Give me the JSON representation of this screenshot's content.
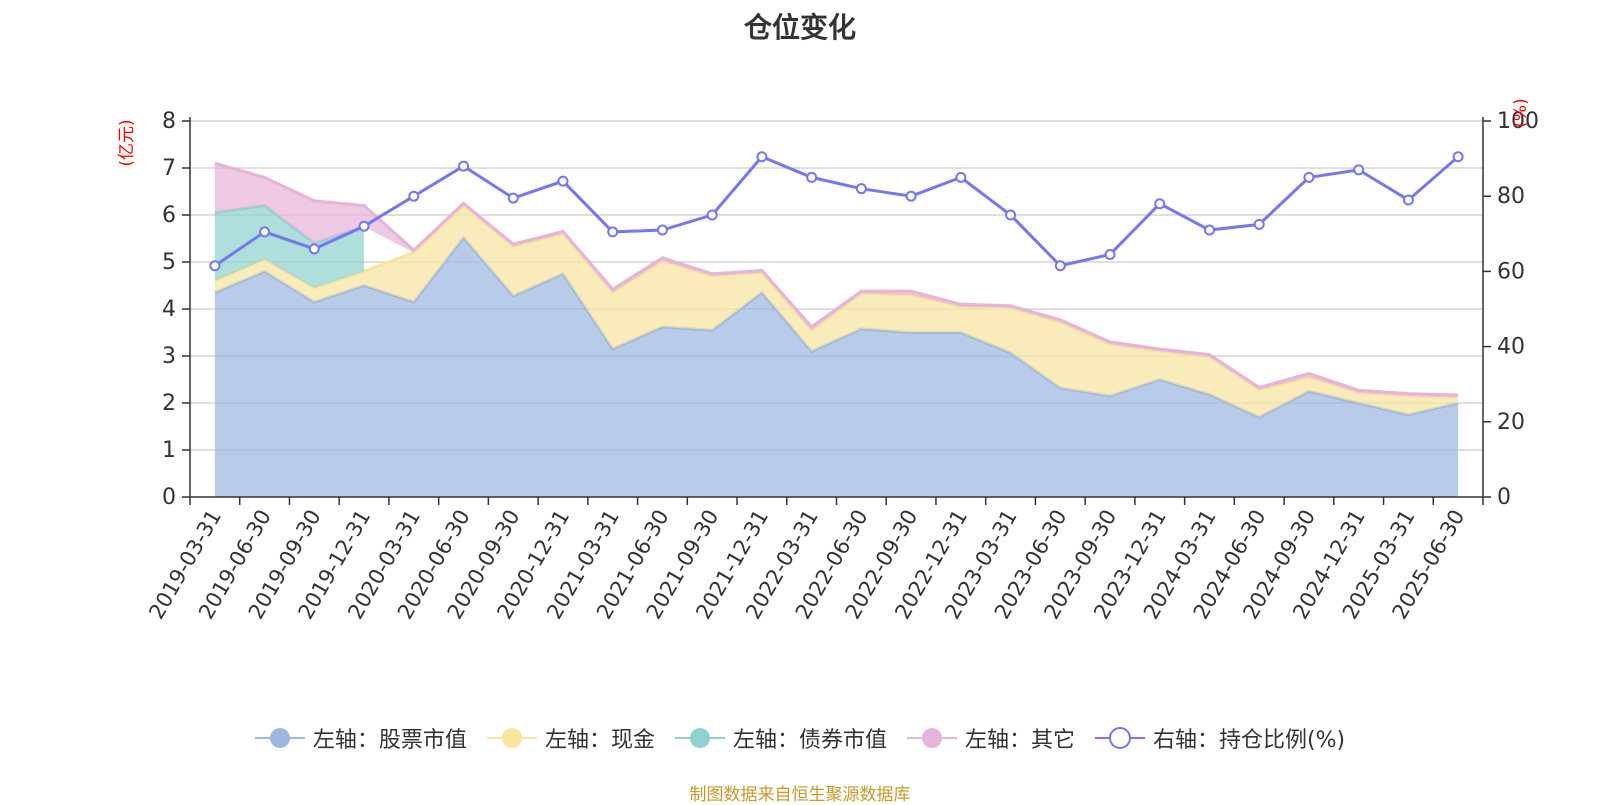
{
  "title": "仓位变化",
  "source_note": "制图数据来自恒生聚源数据库",
  "chart_data": {
    "type": "area",
    "title": "仓位变化",
    "categories": [
      "2019-03-31",
      "2019-06-30",
      "2019-09-30",
      "2019-12-31",
      "2020-03-31",
      "2020-06-30",
      "2020-09-30",
      "2020-12-31",
      "2021-03-31",
      "2021-06-30",
      "2021-09-30",
      "2021-12-31",
      "2022-03-31",
      "2022-06-30",
      "2022-09-30",
      "2022-12-31",
      "2023-03-31",
      "2023-06-30",
      "2023-09-30",
      "2023-12-31",
      "2024-03-31",
      "2024-06-30",
      "2024-09-30",
      "2024-12-31",
      "2025-03-31",
      "2025-06-30"
    ],
    "left_axis": {
      "label": "(亿元)",
      "ylim": [
        0,
        8
      ],
      "ticks": [
        0,
        1,
        2,
        3,
        4,
        5,
        6,
        7,
        8
      ]
    },
    "right_axis": {
      "label": "(%)",
      "ylim": [
        0,
        100
      ],
      "ticks": [
        0,
        20,
        40,
        60,
        80,
        100
      ]
    },
    "series": [
      {
        "name": "左轴：股票市值",
        "axis": "left",
        "kind": "stacked-area",
        "color": "#9db7e0",
        "values": [
          4.35,
          4.8,
          4.15,
          4.5,
          4.15,
          5.52,
          4.28,
          4.75,
          3.15,
          3.62,
          3.55,
          4.35,
          3.1,
          3.58,
          3.5,
          3.5,
          3.07,
          2.32,
          2.15,
          2.5,
          2.18,
          1.7,
          2.25,
          2.0,
          1.75,
          2.0
        ]
      },
      {
        "name": "左轴：现金",
        "axis": "left",
        "kind": "stacked-area",
        "color": "#f7e4a0",
        "values": [
          0.25,
          0.25,
          0.3,
          0.3,
          1.05,
          0.68,
          1.05,
          0.85,
          1.2,
          1.4,
          1.15,
          0.42,
          0.45,
          0.75,
          0.8,
          0.55,
          0.95,
          1.4,
          1.1,
          0.6,
          0.8,
          0.58,
          0.3,
          0.22,
          0.4,
          0.12
        ]
      },
      {
        "name": "左轴：债券市值",
        "axis": "left",
        "kind": "stacked-area",
        "color": "#8fd2d0",
        "values": [
          1.45,
          1.15,
          0.95,
          0.95,
          0,
          0,
          0,
          0,
          0,
          0,
          0,
          0,
          0,
          0,
          0,
          0,
          0,
          0,
          0,
          0,
          0,
          0,
          0,
          0,
          0,
          0
        ]
      },
      {
        "name": "左轴：其它",
        "axis": "left",
        "kind": "stacked-area",
        "color": "#e6b4da",
        "values": [
          1.05,
          0.6,
          0.9,
          0.45,
          0.05,
          0.05,
          0.05,
          0.05,
          0.07,
          0.07,
          0.05,
          0.05,
          0.07,
          0.05,
          0.08,
          0.05,
          0.05,
          0.05,
          0.05,
          0.05,
          0.05,
          0.05,
          0.08,
          0.05,
          0.05,
          0.05
        ]
      },
      {
        "name": "右轴：持仓比例(%)",
        "axis": "right",
        "kind": "line",
        "color": "#7477ee",
        "values": [
          61.5,
          70.5,
          66,
          72,
          80,
          88,
          79.5,
          84,
          70.5,
          71,
          75,
          90.5,
          85,
          82,
          80,
          85,
          75,
          61.5,
          64.5,
          78,
          71,
          72.5,
          85,
          87,
          79,
          90.5
        ]
      }
    ],
    "legend_position": "bottom",
    "grid": true
  }
}
